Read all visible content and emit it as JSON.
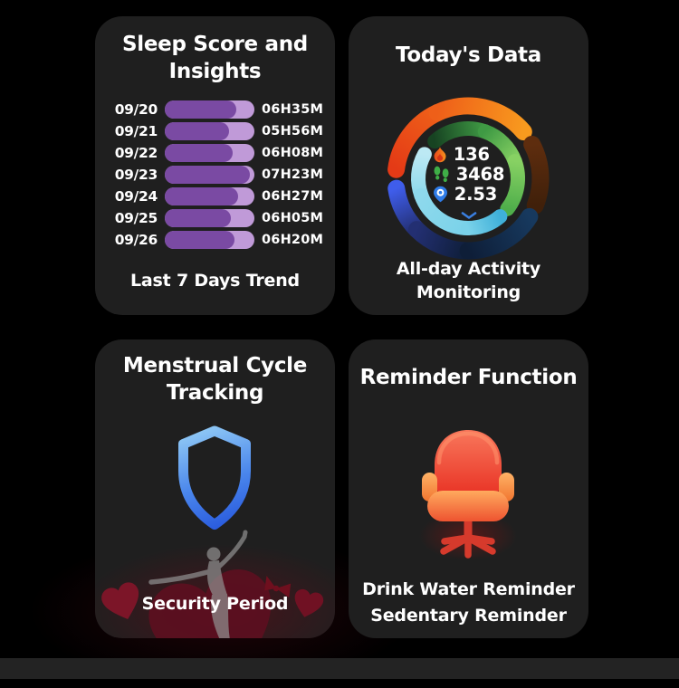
{
  "theme": {
    "background": "#000000",
    "card_background": "#1f1f1f",
    "bottom_bar": "#232323",
    "text": "#ffffff",
    "accent_blue": "#3a7fe0",
    "bar_track_purple": "#c09ad8",
    "bar_fill_purple": "#7a4aa3"
  },
  "cards": {
    "sleep": {
      "title": "Sleep Score and Insights",
      "footer": "Last 7 Days Trend"
    },
    "today": {
      "title": "Today's Data",
      "footer": "All-day Activity Monitoring",
      "stats": [
        {
          "icon": "flame-icon",
          "value": "136"
        },
        {
          "icon": "footprints-icon",
          "value": "3468"
        },
        {
          "icon": "location-pin-icon",
          "value": "2.53"
        }
      ]
    },
    "menstrual": {
      "title": "Menstrual Cycle Tracking",
      "label": "Security Period"
    },
    "reminder": {
      "title": "Reminder Function",
      "line1": "Drink Water Reminder",
      "line2": "Sedentary Reminder"
    }
  },
  "chart_data": [
    {
      "type": "bar",
      "orientation": "horizontal",
      "title": "Sleep Score and Insights",
      "subtitle": "Last 7 Days Trend",
      "categories": [
        "09/20",
        "09/21",
        "09/22",
        "09/23",
        "09/24",
        "09/25",
        "09/26"
      ],
      "value_labels": [
        "06H35M",
        "05H56M",
        "06H08M",
        "07H23M",
        "06H27M",
        "06H05M",
        "06H20M"
      ],
      "values_hours": [
        6.58,
        5.93,
        6.13,
        7.38,
        6.45,
        6.08,
        6.33
      ],
      "fill_fractions": [
        0.8,
        0.72,
        0.76,
        0.95,
        0.82,
        0.74,
        0.78
      ],
      "track_color": "#c09ad8",
      "fill_color": "#7a4aa3"
    },
    {
      "type": "ring",
      "title": "Today's Data",
      "center_stats": [
        {
          "name": "calories",
          "value": 136
        },
        {
          "name": "steps",
          "value": 3468
        },
        {
          "name": "distance",
          "value": 2.53
        }
      ],
      "segments": [
        {
          "name": "outer-red",
          "r": 80,
          "w": 19,
          "from": 277,
          "to": 335,
          "c1": "#e43a16",
          "c2": "#ee5f19"
        },
        {
          "name": "outer-orange",
          "r": 80,
          "w": 19,
          "from": 335,
          "to": 410,
          "c1": "#ee5f19",
          "c2": "#f89a1e"
        },
        {
          "name": "outer-brown",
          "r": 80,
          "w": 19,
          "from": 62,
          "to": 112,
          "c1": "#5e2d0e",
          "c2": "#40200a"
        },
        {
          "name": "outer-blue-1",
          "r": 80,
          "w": 19,
          "from": 262,
          "to": 225,
          "c1": "#3f5deb",
          "c2": "#232f72"
        },
        {
          "name": "outer-blue-2",
          "r": 80,
          "w": 19,
          "from": 225,
          "to": 180,
          "c1": "#232f72",
          "c2": "#0e1e38"
        },
        {
          "name": "outer-blue-3",
          "r": 80,
          "w": 19,
          "from": 180,
          "to": 122,
          "c1": "#0e1e38",
          "c2": "#17395e"
        },
        {
          "name": "inner-green-1",
          "r": 55,
          "w": 16,
          "from": 318,
          "to": 380,
          "c1": "#174322",
          "c2": "#3f9a44"
        },
        {
          "name": "inner-green-2",
          "r": 55,
          "w": 16,
          "from": 380,
          "to": 430,
          "c1": "#3f9a44",
          "c2": "#87d163"
        },
        {
          "name": "inner-green-3",
          "r": 55,
          "w": 16,
          "from": 430,
          "to": 488,
          "c1": "#87d163",
          "c2": "#4fae4b"
        },
        {
          "name": "inner-cyan-1",
          "r": 55,
          "w": 16,
          "from": 299,
          "to": 250,
          "c1": "#bce9f4",
          "c2": "#8ed9ec"
        },
        {
          "name": "inner-cyan-2",
          "r": 55,
          "w": 16,
          "from": 250,
          "to": 180,
          "c1": "#8ed9ec",
          "c2": "#7ad2e9"
        },
        {
          "name": "inner-cyan-3",
          "r": 55,
          "w": 16,
          "from": 180,
          "to": 140,
          "c1": "#7ad2e9",
          "c2": "#3fb0d9"
        }
      ]
    }
  ]
}
